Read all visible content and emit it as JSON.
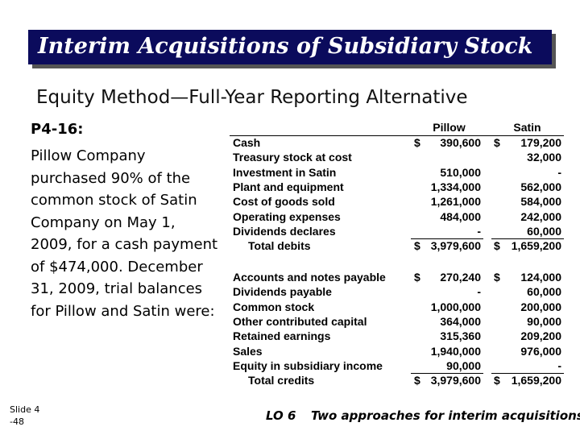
{
  "header": {
    "title": "Interim Acquisitions of Subsidiary Stock",
    "subtitle": "Equity Method—Full-Year Reporting Alternative"
  },
  "problem": {
    "label": "P4-16:",
    "text": "Pillow Company purchased 90% of the common stock of Satin Company on May 1, 2009, for a cash payment of $474,000. December 31, 2009, trial balances for Pillow and Satin were:"
  },
  "table": {
    "columns": [
      "Pillow",
      "Satin"
    ],
    "debits": [
      {
        "label": "Cash",
        "pillow_symbol": "$",
        "pillow": "390,600",
        "satin_symbol": "$",
        "satin": "179,200"
      },
      {
        "label": "Treasury stock at cost",
        "satin": "32,000"
      },
      {
        "label": "Investment in Satin",
        "pillow": "510,000",
        "satin": "-"
      },
      {
        "label": "Plant and equipment",
        "pillow": "1,334,000",
        "satin": "562,000"
      },
      {
        "label": "Cost of goods sold",
        "pillow": "1,261,000",
        "satin": "584,000"
      },
      {
        "label": "Operating expenses",
        "pillow": "484,000",
        "satin": "242,000"
      },
      {
        "label": "Dividends declares",
        "pillow": "-",
        "satin": "60,000"
      },
      {
        "label": "Total debits",
        "pillow_symbol": "$",
        "pillow": "3,979,600",
        "satin_symbol": "$",
        "satin": "1,659,200"
      }
    ],
    "credits": [
      {
        "label": "Accounts and notes payable",
        "pillow_symbol": "$",
        "pillow": "270,240",
        "satin_symbol": "$",
        "satin": "124,000"
      },
      {
        "label": "Dividends payable",
        "pillow": "-",
        "satin": "60,000"
      },
      {
        "label": "Common stock",
        "pillow": "1,000,000",
        "satin": "200,000"
      },
      {
        "label": "Other contributed capital",
        "pillow": "364,000",
        "satin": "90,000"
      },
      {
        "label": "Retained earnings",
        "pillow": "315,360",
        "satin": "209,200"
      },
      {
        "label": "Sales",
        "pillow": "1,940,000",
        "satin": "976,000"
      },
      {
        "label": "Equity in subsidiary income",
        "pillow": "90,000",
        "satin": "-"
      },
      {
        "label": "Total credits",
        "pillow_symbol": "$",
        "pillow": "3,979,600",
        "satin_symbol": "$",
        "satin": "1,659,200"
      }
    ]
  },
  "footer": {
    "slide": "Slide 4",
    "page": "-48",
    "lo": "LO 6",
    "note": "Two approaches for interim acquisitions."
  }
}
